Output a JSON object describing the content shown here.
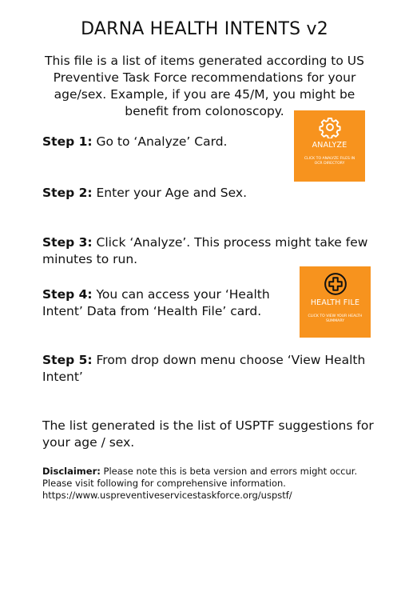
{
  "title": "DARNA HEALTH INTENTS v2",
  "intro": "This file is a list of items generated according to US Preventive Task Force recommendations for your age/sex. Example, if you are 45/M, you might be benefit from colonoscopy.",
  "steps": [
    {
      "label": "Step 1:",
      "text": "Go to ‘Analyze’ Card."
    },
    {
      "label": "Step 2:",
      "text": "Enter your Age and Sex."
    },
    {
      "label": "Step 3:",
      "text": "Click ‘Analyze’. This process might take few minutes to run."
    },
    {
      "label": "Step 4:",
      "text": "You can access your ‘Health Intent’ Data from ‘Health File’ card."
    },
    {
      "label": "Step 5:",
      "text": "From drop down menu choose ‘View Health Intent’"
    }
  ],
  "summary": "The list generated is the list of USPTF suggestions for your age / sex.",
  "disclaimer": {
    "label": "Disclaimer:",
    "text": "Please note this is beta version and errors might occur. Please visit following for comprehensive information.",
    "url": "https://www.uspreventiveservicestaskforce.org/uspstf/"
  },
  "cards": {
    "analyze": {
      "title": "ANALYZE",
      "subtitle": "CLICK TO ANALYZE FILES IN OCR DIRECTORY",
      "icon": "gear-icon",
      "color": "#f7931e"
    },
    "health_file": {
      "title": "HEALTH FILE",
      "subtitle": "CLICK TO VIEW YOUR HEALTH SUMMARY",
      "icon": "medical-cross-icon",
      "color": "#f7931e"
    }
  }
}
